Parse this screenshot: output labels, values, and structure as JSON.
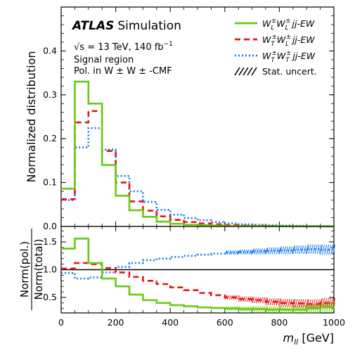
{
  "chart_data": [
    {
      "type": "line",
      "panel": "main",
      "step": true,
      "bin_edges": [
        0,
        25,
        50,
        100,
        150,
        200,
        250,
        300,
        350,
        400,
        450,
        500,
        550,
        600,
        650,
        700,
        750,
        800,
        850,
        900,
        950,
        1000
      ],
      "xlim": [
        0,
        1000
      ],
      "ylim": [
        0,
        0.5
      ],
      "ylabel": "Normalized distribution",
      "yticks": [
        "0.0",
        "0.1",
        "0.2",
        "0.3",
        "0.4"
      ],
      "series": [
        {
          "name": "LL",
          "label_parts": [
            "W",
            "L",
            "±",
            "W",
            "L",
            "±",
            "jj-EW"
          ],
          "color": "#66cc11",
          "style": "solid",
          "values": [
            0.086,
            0.086,
            0.33,
            0.28,
            0.14,
            0.07,
            0.037,
            0.022,
            0.011,
            0.006,
            0.004,
            0.003,
            0.002,
            0.001,
            0.001,
            0.0008,
            0.0005,
            0.0004,
            0.0003,
            0.0002,
            0.0001
          ]
        },
        {
          "name": "TL",
          "label_parts": [
            "W",
            "T",
            "±",
            "W",
            "L",
            "±",
            "jj-EW"
          ],
          "color": "#ee1111",
          "style": "dashed",
          "values": [
            0.062,
            0.062,
            0.237,
            0.263,
            0.172,
            0.1,
            0.057,
            0.036,
            0.023,
            0.015,
            0.01,
            0.007,
            0.005,
            0.003,
            0.002,
            0.0015,
            0.001,
            0.0008,
            0.0005,
            0.0004,
            0.0003
          ]
        },
        {
          "name": "TT",
          "label_parts": [
            "W",
            "T",
            "±",
            "W",
            "T",
            "±",
            "jj-EW"
          ],
          "color": "#1177ee",
          "style": "dotted",
          "values": [
            0.06,
            0.06,
            0.18,
            0.224,
            0.175,
            0.115,
            0.08,
            0.056,
            0.038,
            0.027,
            0.019,
            0.014,
            0.01,
            0.007,
            0.005,
            0.004,
            0.003,
            0.002,
            0.0015,
            0.001,
            0.0008
          ]
        }
      ],
      "annotations": {
        "brand": "ATLAS",
        "brand_suffix": "Simulation",
        "energy_prefix": "√s",
        "energy": " = 13 TeV, 140 fb",
        "energy_sup": "−1",
        "region": "Signal region",
        "frame": "Pol. in W ± W ± -CMF",
        "stat": "Stat. uncert."
      },
      "legend_position": "top-right"
    },
    {
      "type": "line",
      "panel": "ratio",
      "step": true,
      "bin_edges": [
        0,
        25,
        50,
        100,
        150,
        200,
        250,
        300,
        350,
        400,
        450,
        500,
        550,
        600,
        650,
        700,
        750,
        800,
        850,
        900,
        950,
        1000
      ],
      "xlim": [
        0,
        1000
      ],
      "ylim": [
        0.22,
        1.78
      ],
      "reference_line": 1.0,
      "ylabel_num": "Norm(pol.)",
      "ylabel_den": "Norm(total)",
      "xlabel_main": "m",
      "xlabel_sub": "ll",
      "xlabel_unit": " [GeV]",
      "xticks": [
        "0",
        "200",
        "400",
        "600",
        "800",
        "1000"
      ],
      "yticks": [
        "0.5",
        "1.0",
        "1.5"
      ],
      "series": [
        {
          "name": "LL",
          "color": "#66cc11",
          "style": "solid",
          "values": [
            1.38,
            1.38,
            1.56,
            1.12,
            0.84,
            0.7,
            0.55,
            0.45,
            0.4,
            0.36,
            0.34,
            0.32,
            0.31,
            0.3,
            0.29,
            0.29,
            0.28,
            0.28,
            0.28,
            0.3,
            0.32
          ]
        },
        {
          "name": "TL",
          "color": "#ee1111",
          "style": "dashed",
          "values": [
            1.02,
            1.02,
            1.12,
            1.1,
            1.03,
            0.95,
            0.87,
            0.8,
            0.74,
            0.68,
            0.63,
            0.58,
            0.54,
            0.5,
            0.47,
            0.45,
            0.42,
            0.4,
            0.39,
            0.38,
            0.4
          ]
        },
        {
          "name": "TT",
          "color": "#1177ee",
          "style": "dotted",
          "values": [
            0.94,
            0.94,
            0.84,
            0.86,
            0.95,
            1.05,
            1.12,
            1.17,
            1.2,
            1.23,
            1.25,
            1.27,
            1.29,
            1.31,
            1.32,
            1.33,
            1.34,
            1.35,
            1.36,
            1.37,
            1.36
          ]
        }
      ]
    }
  ]
}
